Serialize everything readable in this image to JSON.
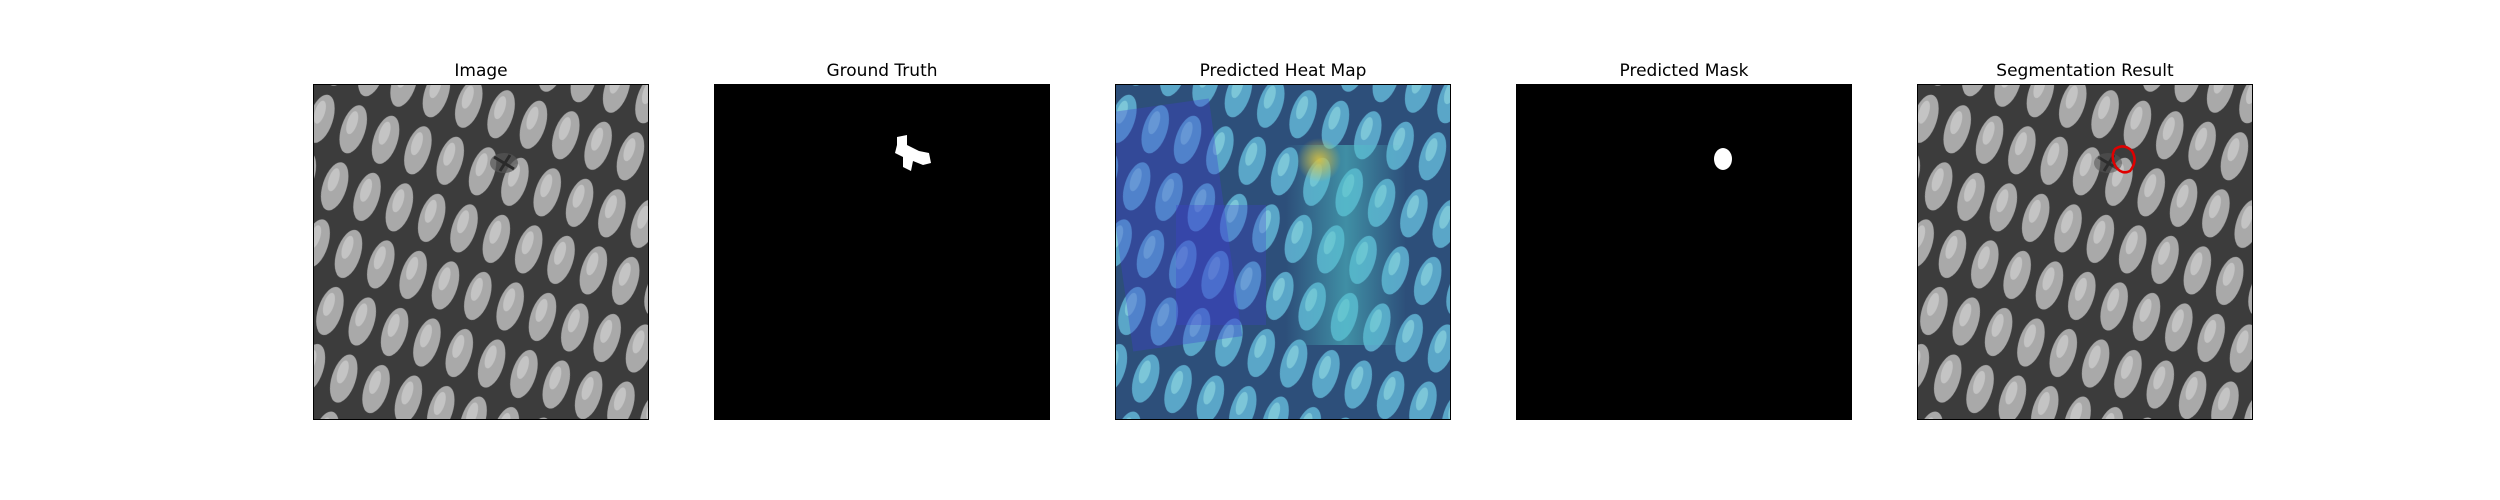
{
  "figure": {
    "panels": [
      {
        "id": "image",
        "title": "Image"
      },
      {
        "id": "ground-truth",
        "title": "Ground Truth"
      },
      {
        "id": "heatmap",
        "title": "Predicted Heat Map"
      },
      {
        "id": "predicted-mask",
        "title": "Predicted Mask"
      },
      {
        "id": "segmentation",
        "title": "Segmentation Result"
      }
    ]
  },
  "colors": {
    "mask_background": "#000000",
    "mask_foreground": "#ffffff",
    "texture_background": "#8a8a8a",
    "texture_cell": "#a9a9a9",
    "texture_line": "#3c3c3c",
    "heat_blue": "#3f3fd0",
    "heat_cyan": "#4fc3c8",
    "heat_yellow": "#d8c040",
    "contour": "#e00000"
  }
}
